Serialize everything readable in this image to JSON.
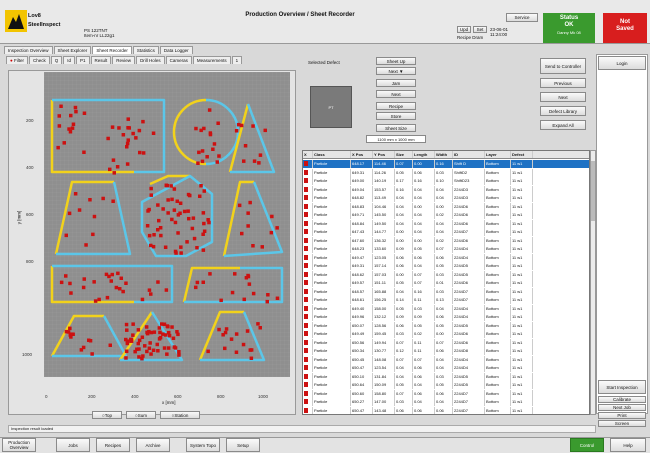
{
  "header": {
    "brand_line1": "Lov8",
    "brand_line2": "SteelInspect",
    "title": "Production Overview / Sheet Recorder",
    "info_line1": "PS 122TNT",
    "info_line2": "Item-nr LL22g1",
    "small_btn_a": "Upd",
    "small_btn_b": "Set",
    "datetime_a": "23-06-01",
    "datetime_b": "11:24:00",
    "recipe_label": "Recipe Dram",
    "service_label": "Service",
    "status_title": "Status",
    "status_value": "OK",
    "status_sub": "Danny Mk 08",
    "notsaved_line1": "Not",
    "notsaved_line2": "Saved"
  },
  "tabs": [
    "Inspection Overview",
    "Sheet Explorer",
    "Sheet Recorder",
    "Statistics",
    "Data Logger"
  ],
  "subtabs": [
    "Filter",
    "Check",
    "Q",
    "Id",
    "P1",
    "Result",
    "Review",
    "Drill Holes",
    "Cameras",
    "Measurements",
    "1"
  ],
  "plot": {
    "ylabel": "y [mm]",
    "xlabel": "x [mm]",
    "y_ticks": [
      "200",
      "400",
      "600",
      "800",
      "1000"
    ],
    "x_ticks": [
      "0",
      "200",
      "400",
      "600",
      "800",
      "1000"
    ],
    "view_buttons": [
      "Top",
      "Sum",
      "Station"
    ]
  },
  "selected_defect": {
    "label": "Selected Defect",
    "image_label": "PT",
    "buttons": [
      "Sheet Up",
      "Next ▼",
      "Jam",
      "Next",
      "Recipe",
      "Store",
      "Sheet Size"
    ],
    "size_value": "1100 mm x 1000 mm"
  },
  "right_buttons": [
    "Send to Controller",
    "Previous",
    "Next",
    "Defect Library",
    "Expand All"
  ],
  "login_label": "Login",
  "table": {
    "columns": [
      "X",
      "Class",
      "X Pos",
      "Y Pos",
      "Size",
      "Length",
      "Width",
      "ID",
      "Layer",
      "Defect"
    ],
    "rows": [
      [
        "Particle",
        "648.17",
        "114.46",
        "0.07",
        "0.00",
        "0.16",
        "Shift D",
        "Bottom",
        "11 w1"
      ],
      [
        "Particle",
        "649.31",
        "114.26",
        "0.05",
        "0.06",
        "0.03",
        "ShiftD2",
        "Bottom",
        "11 w1"
      ],
      [
        "Particle",
        "649.00",
        "140.19",
        "0.17",
        "0.16",
        "0.10",
        "ShiftD23",
        "Bottom",
        "11 w1"
      ],
      [
        "Particle",
        "649.04",
        "153.57",
        "0.16",
        "0.04",
        "0.04",
        "2244D3",
        "Bottom",
        "11 w1"
      ],
      [
        "Particle",
        "648.82",
        "113.49",
        "0.04",
        "0.04",
        "0.04",
        "2244D3",
        "Bottom",
        "11 w1"
      ],
      [
        "Particle",
        "648.83",
        "104.46",
        "0.04",
        "0.00",
        "0.00",
        "2244D6",
        "Bottom",
        "11 w1"
      ],
      [
        "Particle",
        "649.71",
        "145.50",
        "0.04",
        "0.04",
        "0.02",
        "2244D6",
        "Bottom",
        "11 w1"
      ],
      [
        "Particle",
        "648.84",
        "149.50",
        "0.04",
        "0.04",
        "0.04",
        "2244D6",
        "Bottom",
        "11 w1"
      ],
      [
        "Particle",
        "647.43",
        "144.77",
        "0.00",
        "0.04",
        "0.04",
        "2244D7",
        "Bottom",
        "11 w1"
      ],
      [
        "Particle",
        "647.60",
        "136.32",
        "0.00",
        "0.00",
        "0.02",
        "2244D6",
        "Bottom",
        "11 w1"
      ],
      [
        "Particle",
        "648.23",
        "133.60",
        "0.09",
        "0.05",
        "0.07",
        "2244D4",
        "Bottom",
        "11 w1"
      ],
      [
        "Particle",
        "649.47",
        "123.05",
        "0.06",
        "0.06",
        "0.06",
        "2244D4",
        "Bottom",
        "11 w1"
      ],
      [
        "Particle",
        "649.31",
        "157.14",
        "0.06",
        "0.04",
        "0.05",
        "2244D5",
        "Bottom",
        "11 w1"
      ],
      [
        "Particle",
        "648.62",
        "157.03",
        "0.00",
        "0.07",
        "0.03",
        "2244D5",
        "Bottom",
        "11 w1"
      ],
      [
        "Particle",
        "649.57",
        "151.11",
        "0.05",
        "0.07",
        "0.01",
        "2244D6",
        "Bottom",
        "11 w1"
      ],
      [
        "Particle",
        "648.57",
        "165.88",
        "0.04",
        "0.16",
        "0.03",
        "2244D7",
        "Bottom",
        "11 w1"
      ],
      [
        "Particle",
        "648.61",
        "156.25",
        "0.14",
        "0.11",
        "0.13",
        "2244D7",
        "Bottom",
        "11 w1"
      ],
      [
        "Particle",
        "649.40",
        "158.00",
        "0.05",
        "0.03",
        "0.04",
        "2244D4",
        "Bottom",
        "11 w1"
      ],
      [
        "Particle",
        "649.96",
        "132.12",
        "0.09",
        "0.09",
        "0.06",
        "2244D4",
        "Bottom",
        "11 w1"
      ],
      [
        "Particle",
        "650.07",
        "128.56",
        "0.06",
        "0.05",
        "0.05",
        "2244D5",
        "Bottom",
        "11 w1"
      ],
      [
        "Particle",
        "649.49",
        "159.45",
        "0.03",
        "0.02",
        "0.00",
        "2244D6",
        "Bottom",
        "11 w1"
      ],
      [
        "Particle",
        "650.56",
        "149.94",
        "0.07",
        "0.11",
        "0.07",
        "2244D6",
        "Bottom",
        "11 w1"
      ],
      [
        "Particle",
        "650.34",
        "130.77",
        "0.12",
        "0.11",
        "0.06",
        "2244D8",
        "Bottom",
        "11 w1"
      ],
      [
        "Particle",
        "650.45",
        "148.08",
        "0.07",
        "0.07",
        "0.04",
        "2244D4",
        "Bottom",
        "11 w1"
      ],
      [
        "Particle",
        "650.47",
        "123.54",
        "0.04",
        "0.06",
        "0.04",
        "2244D4",
        "Bottom",
        "11 w1"
      ],
      [
        "Particle",
        "650.10",
        "131.84",
        "0.04",
        "0.06",
        "0.03",
        "2244D5",
        "Bottom",
        "11 w1"
      ],
      [
        "Particle",
        "650.64",
        "150.09",
        "0.05",
        "0.04",
        "0.05",
        "2244D5",
        "Bottom",
        "11 w1"
      ],
      [
        "Particle",
        "650.60",
        "158.80",
        "0.07",
        "0.06",
        "0.06",
        "2244D7",
        "Bottom",
        "11 w1"
      ],
      [
        "Particle",
        "650.27",
        "147.00",
        "0.03",
        "0.04",
        "0.04",
        "2244D7",
        "Bottom",
        "11 w1"
      ],
      [
        "Particle",
        "650.47",
        "143.48",
        "0.06",
        "0.06",
        "0.06",
        "2244D7",
        "Bottom",
        "11 w1"
      ]
    ]
  },
  "right_lower": {
    "start_inspection": "Start Inspection",
    "calibrate": "Calibrate",
    "next_job": "Next Job",
    "print": "Print",
    "screen": "Screen"
  },
  "status_line": "Inspection result loaded",
  "bottom_nav": [
    "Production Overview",
    "Jobs",
    "Recipes",
    "Archive",
    "System Topo",
    "Setup"
  ],
  "bottom_right": [
    "Control",
    "Help"
  ],
  "colors": {
    "accent_green": "#3a9a2e",
    "alert_red": "#d81e1e",
    "defect_red": "#cc1111",
    "selection_blue": "#1f72c4",
    "shape_yellow": "#f2d21b",
    "shape_cyan": "#5bc6e8"
  }
}
